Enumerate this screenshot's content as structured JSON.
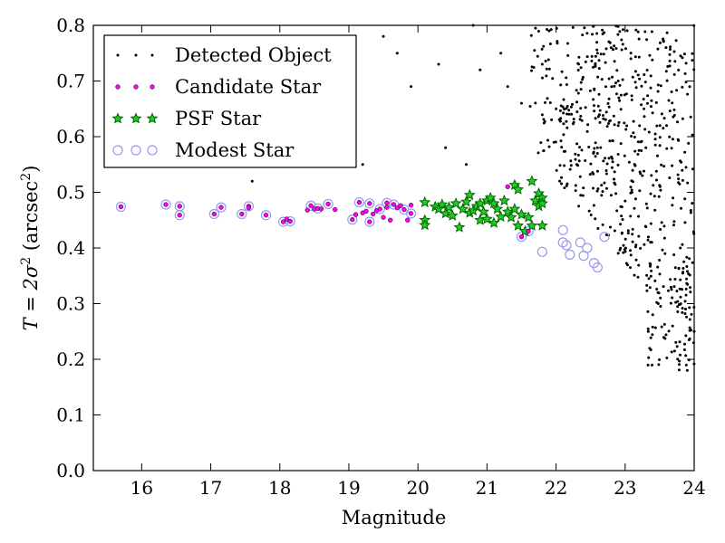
{
  "chart_data": {
    "type": "scatter",
    "xlabel": "Magnitude",
    "ylabel": {
      "math": "T = 2σ",
      "exp": "2",
      "unit_open": " (arcsec",
      "unit_exp": "2",
      "unit_close": ")"
    },
    "xlim": [
      15.3,
      24.0
    ],
    "ylim": [
      0.0,
      0.8
    ],
    "xticks": [
      "16",
      "17",
      "18",
      "19",
      "20",
      "21",
      "22",
      "23",
      "24"
    ],
    "yticks": [
      "0.0",
      "0.1",
      "0.2",
      "0.3",
      "0.4",
      "0.5",
      "0.6",
      "0.7",
      "0.8"
    ],
    "grid": false,
    "legend_position": "upper-left",
    "series": [
      {
        "name": "Detected Object",
        "marker": "dot",
        "color": "#000000",
        "points_sample": [
          [
            17.6,
            0.52
          ],
          [
            19.2,
            0.55
          ],
          [
            19.5,
            0.78
          ],
          [
            19.7,
            0.75
          ],
          [
            19.9,
            0.69
          ],
          [
            20.3,
            0.73
          ],
          [
            20.4,
            0.58
          ],
          [
            20.7,
            0.55
          ],
          [
            20.8,
            0.8
          ],
          [
            20.9,
            0.72
          ],
          [
            21.2,
            0.75
          ],
          [
            21.3,
            0.69
          ],
          [
            21.5,
            0.66
          ],
          [
            21.8,
            0.73
          ],
          [
            21.9,
            0.79
          ],
          [
            22.0,
            0.65
          ],
          [
            22.3,
            0.55
          ],
          [
            22.6,
            0.75
          ],
          [
            22.9,
            0.7
          ],
          [
            23.1,
            0.5
          ],
          [
            23.3,
            0.58
          ],
          [
            23.4,
            0.28
          ],
          [
            23.6,
            0.62
          ],
          [
            23.8,
            0.4
          ],
          [
            23.9,
            0.18
          ],
          [
            24.0,
            0.25
          ]
        ],
        "background_field": "approx. 600 objects, mag 21.5–24, T 0.2–0.8"
      },
      {
        "name": "Candidate Star",
        "marker": "small-circle",
        "color": "#ff00ff",
        "points": [
          [
            15.7,
            0.474
          ],
          [
            16.35,
            0.478
          ],
          [
            16.55,
            0.475
          ],
          [
            16.55,
            0.459
          ],
          [
            17.05,
            0.461
          ],
          [
            17.15,
            0.473
          ],
          [
            17.45,
            0.461
          ],
          [
            17.55,
            0.475
          ],
          [
            17.55,
            0.472
          ],
          [
            17.8,
            0.459
          ],
          [
            18.05,
            0.447
          ],
          [
            18.1,
            0.452
          ],
          [
            18.15,
            0.448
          ],
          [
            18.4,
            0.468
          ],
          [
            18.45,
            0.476
          ],
          [
            18.5,
            0.47
          ],
          [
            18.55,
            0.471
          ],
          [
            18.6,
            0.47
          ],
          [
            18.7,
            0.479
          ],
          [
            18.8,
            0.469
          ],
          [
            19.05,
            0.451
          ],
          [
            19.1,
            0.46
          ],
          [
            19.15,
            0.482
          ],
          [
            19.2,
            0.463
          ],
          [
            19.25,
            0.466
          ],
          [
            19.3,
            0.447
          ],
          [
            19.3,
            0.48
          ],
          [
            19.35,
            0.461
          ],
          [
            19.4,
            0.467
          ],
          [
            19.45,
            0.47
          ],
          [
            19.5,
            0.455
          ],
          [
            19.55,
            0.481
          ],
          [
            19.55,
            0.473
          ],
          [
            19.6,
            0.45
          ],
          [
            19.65,
            0.478
          ],
          [
            19.7,
            0.472
          ],
          [
            19.75,
            0.476
          ],
          [
            19.8,
            0.469
          ],
          [
            19.85,
            0.45
          ],
          [
            19.9,
            0.477
          ],
          [
            19.9,
            0.462
          ],
          [
            21.3,
            0.51
          ],
          [
            21.5,
            0.42
          ],
          [
            21.6,
            0.43
          ]
        ]
      },
      {
        "name": "PSF Star",
        "marker": "star",
        "color": "#00aa00",
        "points": [
          [
            20.1,
            0.482
          ],
          [
            20.1,
            0.45
          ],
          [
            20.1,
            0.441
          ],
          [
            20.25,
            0.474
          ],
          [
            20.3,
            0.47
          ],
          [
            20.35,
            0.478
          ],
          [
            20.4,
            0.462
          ],
          [
            20.45,
            0.473
          ],
          [
            20.5,
            0.458
          ],
          [
            20.55,
            0.48
          ],
          [
            20.6,
            0.437
          ],
          [
            20.65,
            0.47
          ],
          [
            20.7,
            0.483
          ],
          [
            20.75,
            0.463
          ],
          [
            20.75,
            0.495
          ],
          [
            20.8,
            0.467
          ],
          [
            20.85,
            0.475
          ],
          [
            20.9,
            0.45
          ],
          [
            20.9,
            0.48
          ],
          [
            20.95,
            0.465
          ],
          [
            21.0,
            0.485
          ],
          [
            21.0,
            0.452
          ],
          [
            21.05,
            0.49
          ],
          [
            21.1,
            0.48
          ],
          [
            21.1,
            0.445
          ],
          [
            21.15,
            0.47
          ],
          [
            21.2,
            0.456
          ],
          [
            21.25,
            0.485
          ],
          [
            21.3,
            0.465
          ],
          [
            21.35,
            0.455
          ],
          [
            21.4,
            0.513
          ],
          [
            21.4,
            0.47
          ],
          [
            21.45,
            0.44
          ],
          [
            21.45,
            0.505
          ],
          [
            21.5,
            0.46
          ],
          [
            21.55,
            0.43
          ],
          [
            21.6,
            0.455
          ],
          [
            21.65,
            0.44
          ],
          [
            21.65,
            0.52
          ],
          [
            21.7,
            0.485
          ],
          [
            21.75,
            0.475
          ],
          [
            21.75,
            0.498
          ],
          [
            21.8,
            0.49
          ],
          [
            21.8,
            0.48
          ],
          [
            21.8,
            0.44
          ]
        ]
      },
      {
        "name": "Modest Star",
        "marker": "open-circle",
        "color": "#9999ee",
        "points": [
          [
            15.7,
            0.474
          ],
          [
            16.35,
            0.478
          ],
          [
            16.55,
            0.475
          ],
          [
            16.55,
            0.459
          ],
          [
            17.05,
            0.461
          ],
          [
            17.15,
            0.473
          ],
          [
            17.45,
            0.461
          ],
          [
            17.55,
            0.475
          ],
          [
            17.8,
            0.459
          ],
          [
            18.05,
            0.447
          ],
          [
            18.15,
            0.448
          ],
          [
            18.45,
            0.476
          ],
          [
            18.55,
            0.471
          ],
          [
            18.7,
            0.479
          ],
          [
            19.05,
            0.451
          ],
          [
            19.15,
            0.482
          ],
          [
            19.3,
            0.447
          ],
          [
            19.3,
            0.48
          ],
          [
            19.45,
            0.47
          ],
          [
            19.55,
            0.481
          ],
          [
            19.65,
            0.478
          ],
          [
            19.8,
            0.469
          ],
          [
            19.9,
            0.462
          ],
          [
            21.5,
            0.42
          ],
          [
            21.6,
            0.43
          ],
          [
            21.8,
            0.393
          ],
          [
            22.1,
            0.432
          ],
          [
            22.1,
            0.41
          ],
          [
            22.15,
            0.405
          ],
          [
            22.2,
            0.388
          ],
          [
            22.35,
            0.41
          ],
          [
            22.4,
            0.386
          ],
          [
            22.45,
            0.4
          ],
          [
            22.55,
            0.373
          ],
          [
            22.6,
            0.365
          ],
          [
            22.7,
            0.42
          ]
        ]
      }
    ]
  },
  "palette": {
    "detected": "#000000",
    "candidate": "#ff00ff",
    "psf_fill": "#22cc22",
    "psf_edge": "#006600",
    "modest": "#9999ee"
  }
}
